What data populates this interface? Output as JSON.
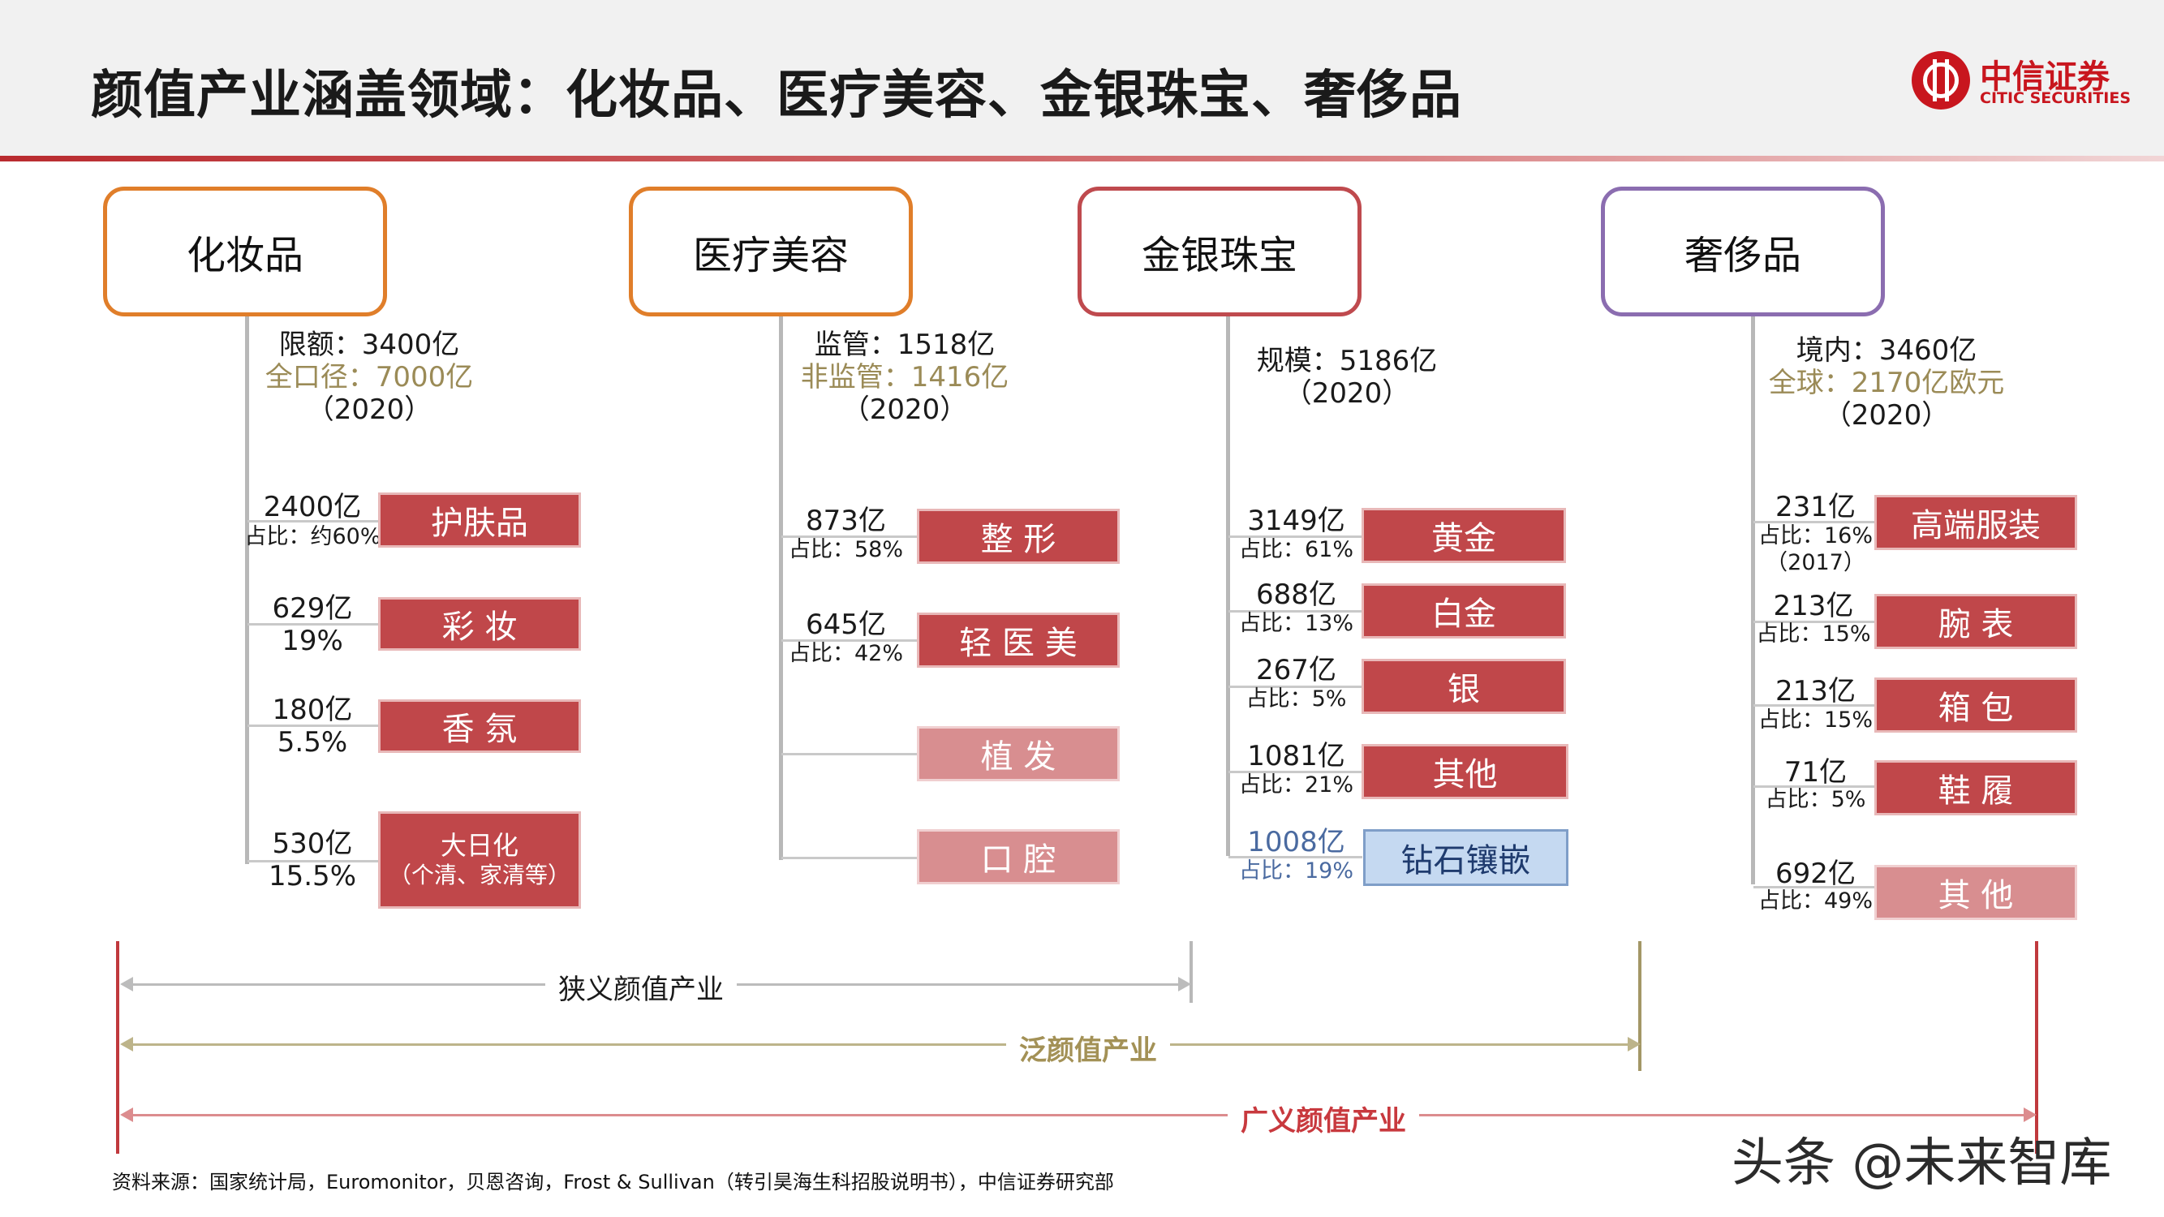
{
  "title": "颜值产业涵盖领域：化妆品、医疗美容、金银珠宝、奢侈品",
  "logo": {
    "cn": "中信证券",
    "en": "CITIC SECURITIES"
  },
  "colors": {
    "cosmetics": "#e07e2a",
    "medical": "#e07e2a",
    "jewelry": "#bf4a4e",
    "luxury": "#8b6db0",
    "dark_red": "#c0474a",
    "light_red": "#d88e90",
    "blue": "#c5d9f1",
    "gold_text": "#9b8b57"
  },
  "cosmetics": {
    "name": "化妆品",
    "stat1": "限额：3400亿",
    "stat2": "全口径：7000亿",
    "year": "（2020）",
    "items": [
      {
        "v1": "2400亿",
        "v2": "占比：约60%",
        "label": "护肤品"
      },
      {
        "v1": "629亿",
        "v2": "19%",
        "label": "彩  妆"
      },
      {
        "v1": "180亿",
        "v2": "5.5%",
        "label": "香  氛"
      },
      {
        "v1": "530亿",
        "v2": "15.5%",
        "label": "大日化",
        "sub": "（个清、家清等）"
      }
    ]
  },
  "medical": {
    "name": "医疗美容",
    "stat1": "监管：1518亿",
    "stat2": "非监管：1416亿",
    "year": "（2020）",
    "items": [
      {
        "v1": "873亿",
        "v2": "占比：58%",
        "label": "整  形"
      },
      {
        "v1": "645亿",
        "v2": "占比：42%",
        "label": "轻 医 美"
      },
      {
        "label": "植  发"
      },
      {
        "label": "口  腔"
      }
    ]
  },
  "jewelry": {
    "name": "金银珠宝",
    "stat1": "规模：5186亿",
    "year": "（2020）",
    "items": [
      {
        "v1": "3149亿",
        "v2": "占比：61%",
        "label": "黄金"
      },
      {
        "v1": "688亿",
        "v2": "占比：13%",
        "label": "白金"
      },
      {
        "v1": "267亿",
        "v2": "占比：5%",
        "label": "银"
      },
      {
        "v1": "1081亿",
        "v2": "占比：21%",
        "label": "其他"
      },
      {
        "v1": "1008亿",
        "v2": "占比：19%",
        "label": "钻石镶嵌"
      }
    ]
  },
  "luxury": {
    "name": "奢侈品",
    "stat1": "境内：3460亿",
    "stat2": "全球：2170亿欧元",
    "year": "（2020）",
    "items": [
      {
        "v1": "231亿",
        "v2": "占比：16%",
        "v3": "（2017）",
        "label": "高端服装"
      },
      {
        "v1": "213亿",
        "v2": "占比：15%",
        "label": "腕  表"
      },
      {
        "v1": "213亿",
        "v2": "占比：15%",
        "label": "箱  包"
      },
      {
        "v1": "71亿",
        "v2": "占比：5%",
        "label": "鞋  履"
      },
      {
        "v1": "692亿",
        "v2": "占比：49%",
        "label": "其 他"
      }
    ]
  },
  "scopes": {
    "narrow": "狭义颜值产业",
    "pan": "泛颜值产业",
    "broad": "广义颜值产业"
  },
  "source": "资料来源：国家统计局，Euromonitor，贝恩咨询，Frost & Sullivan（转引昊海生科招股说明书），中信证券研究部",
  "watermark": "头条 @未来智库"
}
